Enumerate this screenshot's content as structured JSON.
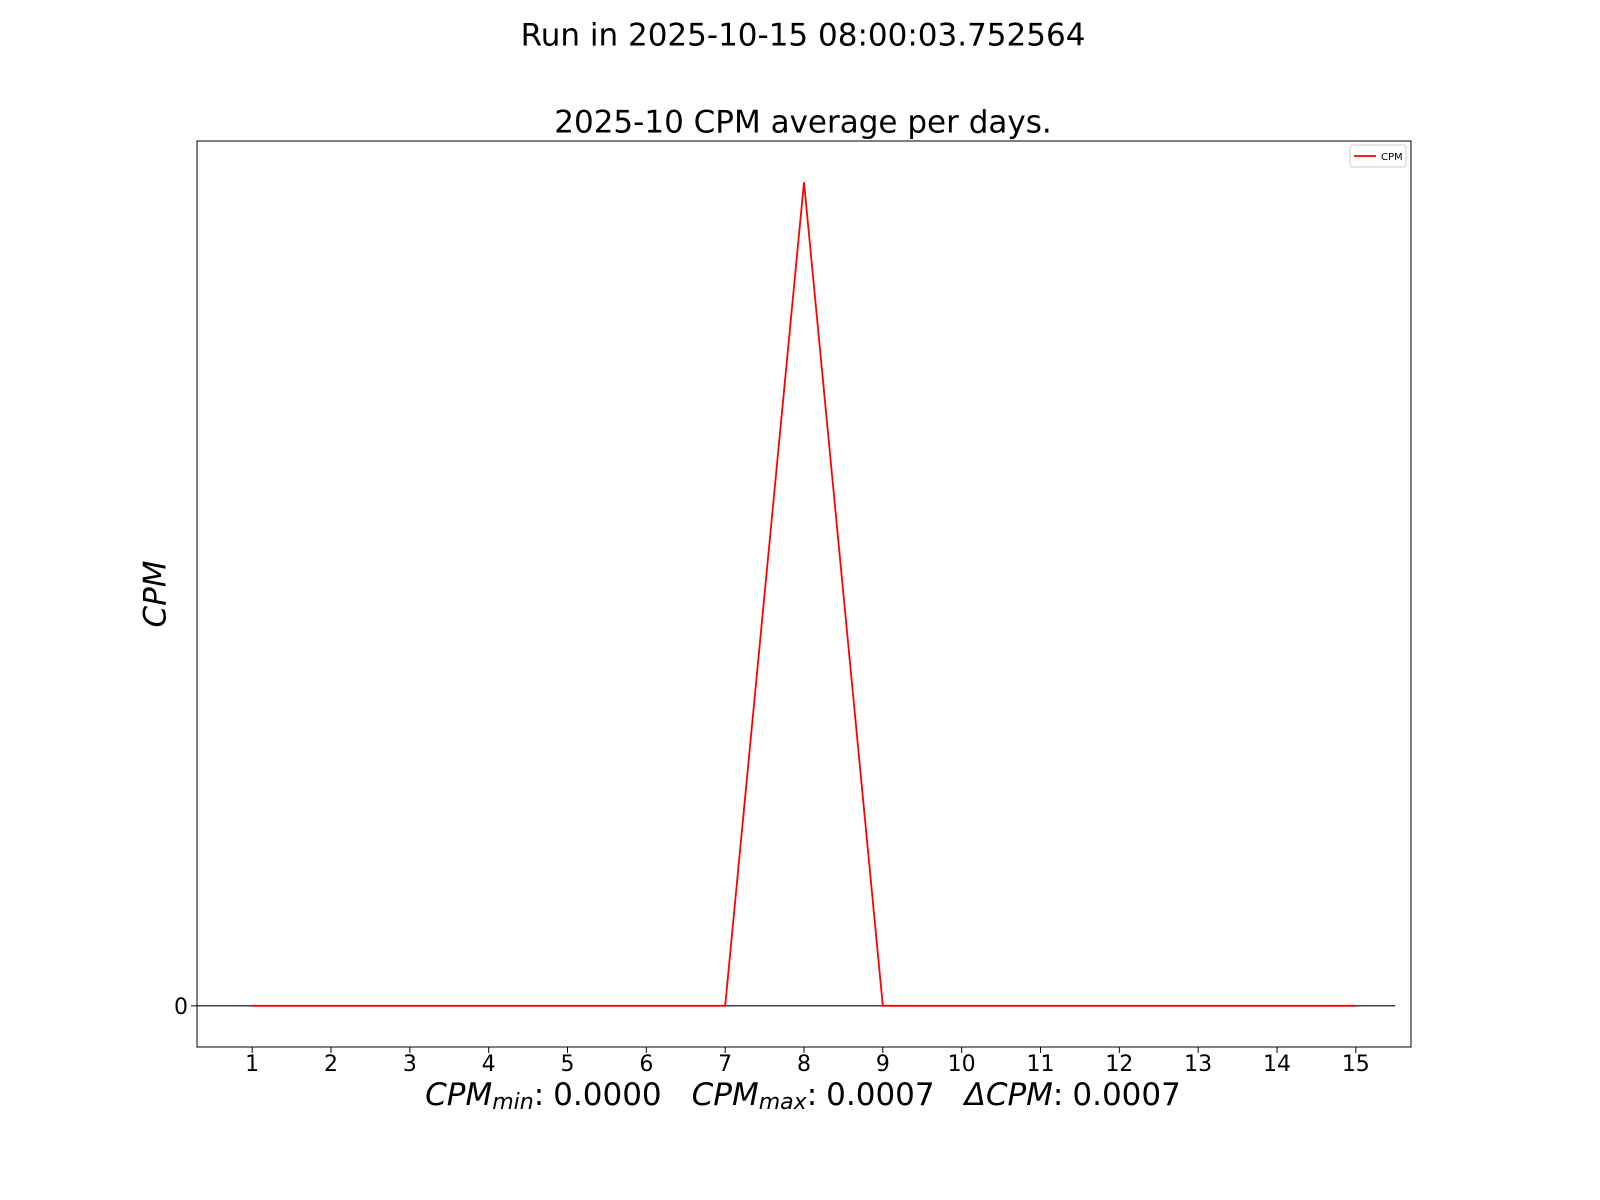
{
  "chart_data": {
    "type": "line",
    "suptitle": "Run in 2025-10-15 08:00:03.752564",
    "title": "2025-10 CPM average per days.",
    "y_label": "CPM",
    "x": [
      1,
      2,
      3,
      4,
      5,
      6,
      7,
      8,
      9,
      10,
      11,
      12,
      13,
      14,
      15
    ],
    "series": [
      {
        "name": "CPM",
        "color": "#ff0000",
        "values": [
          0,
          0,
          0,
          0,
          0,
          0,
          0,
          0.0007,
          0,
          0,
          0,
          0,
          0,
          0,
          0
        ]
      }
    ],
    "xlim": [
      0.3,
      15.7
    ],
    "xticks": [
      1,
      2,
      3,
      4,
      5,
      6,
      7,
      8,
      9,
      10,
      11,
      12,
      13,
      14,
      15
    ],
    "ylim": [
      -3.5e-05,
      0.000735
    ],
    "yticks": [
      0
    ],
    "hline": {
      "y": 0,
      "xmin": 0.3,
      "xmax": 15.5,
      "color": "#000000"
    },
    "legend": "upper right",
    "grid": false,
    "stats_separator": ":",
    "stats": [
      {
        "label": "CPM",
        "subscript": "min",
        "value": "0.0000"
      },
      {
        "label": "CPM",
        "subscript": "max",
        "value": "0.0007"
      },
      {
        "label": "ΔCPM",
        "value": "0.0007"
      }
    ]
  }
}
